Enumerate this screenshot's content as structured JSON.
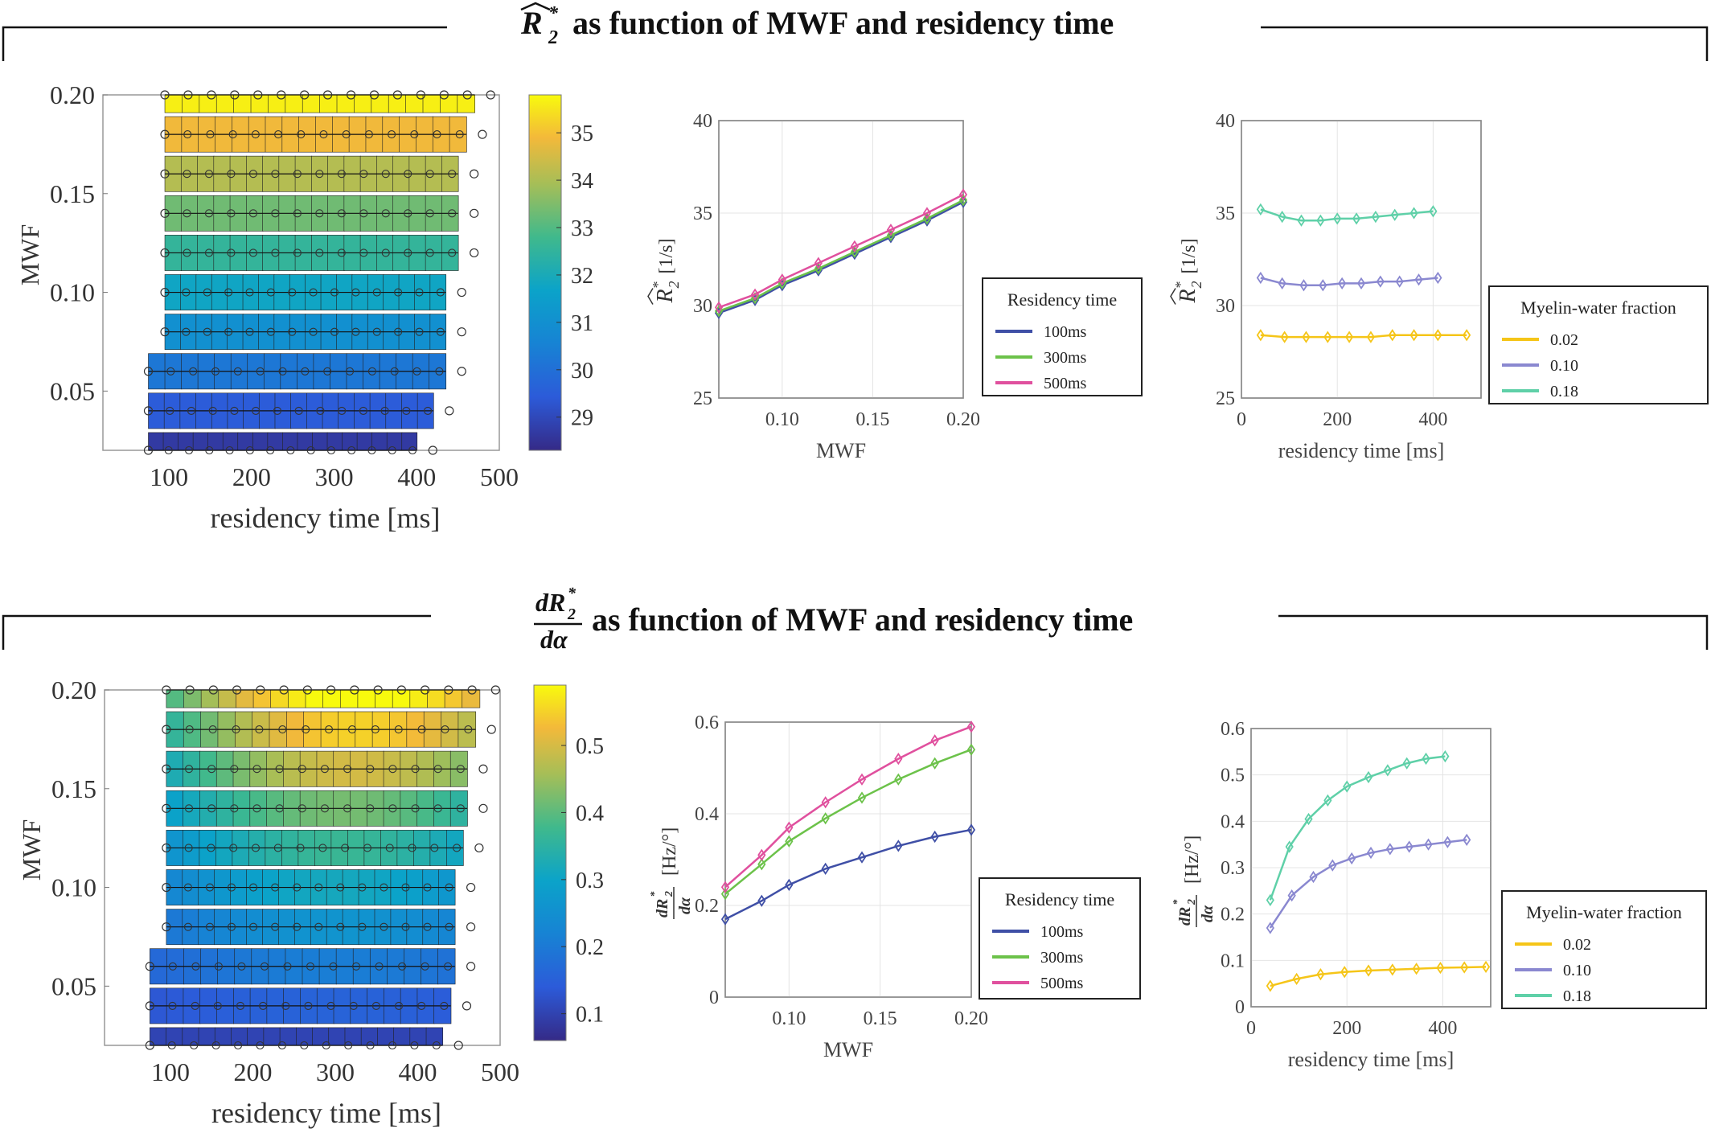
{
  "sections": [
    {
      "title_prefix": "R",
      "title_text": "as function of MWF and residency time",
      "title_kind": "r2hat"
    },
    {
      "title_prefix": "dR",
      "title_text": "as function of MWF and residency time",
      "title_kind": "deriv"
    }
  ],
  "chart_data": [
    {
      "type": "heatmap",
      "id": "r2-heatmap",
      "xlabel": "residency time [ms]",
      "ylabel": "MWF",
      "xticks": [
        100,
        200,
        300,
        400,
        500
      ],
      "yticks": [
        "0.05",
        "0.10",
        "0.15",
        "0.20"
      ],
      "ylim": [
        0.02,
        0.2
      ],
      "colorbar_ticks": [
        29,
        30,
        31,
        32,
        33,
        34,
        35
      ],
      "colorbar_range": [
        28.3,
        35.8
      ],
      "mwf_levels": [
        0.02,
        0.04,
        0.06,
        0.08,
        0.1,
        0.12,
        0.14,
        0.16,
        0.18,
        0.2
      ],
      "row_max_time": [
        400,
        420,
        435,
        435,
        435,
        450,
        450,
        450,
        460,
        470
      ],
      "row_min_time": [
        75,
        75,
        75,
        95,
        95,
        95,
        95,
        95,
        95,
        95
      ],
      "value_low": 28.4,
      "value_high": 35.8
    },
    {
      "type": "line",
      "id": "r2-vs-mwf",
      "xlabel": "MWF",
      "ylabel": "[1/s]",
      "xlim": [
        0.065,
        0.2
      ],
      "ylim": [
        25,
        40
      ],
      "xticks": [
        "0.10",
        "0.15",
        "0.20"
      ],
      "yticks": [
        25,
        30,
        35,
        40
      ],
      "legend_title": "Residency time",
      "x": [
        0.065,
        0.085,
        0.1,
        0.12,
        0.14,
        0.16,
        0.18,
        0.2
      ],
      "series": [
        {
          "name": "100ms",
          "color": "#3f4fa6",
          "values": [
            29.6,
            30.3,
            31.1,
            31.9,
            32.8,
            33.7,
            34.6,
            35.6
          ]
        },
        {
          "name": "300ms",
          "color": "#6cc24a",
          "values": [
            29.7,
            30.4,
            31.2,
            32.0,
            32.9,
            33.8,
            34.7,
            35.7
          ]
        },
        {
          "name": "500ms",
          "color": "#e0509e",
          "values": [
            29.9,
            30.6,
            31.4,
            32.3,
            33.2,
            34.1,
            35.0,
            36.0
          ]
        }
      ]
    },
    {
      "type": "line",
      "id": "r2-vs-time",
      "xlabel": "residency time [ms]",
      "ylabel": "[1/s]",
      "xlim": [
        0,
        500
      ],
      "ylim": [
        25,
        40
      ],
      "xticks": [
        0,
        200,
        400
      ],
      "yticks": [
        25,
        30,
        35,
        40
      ],
      "legend_title": "Myelin-water fraction",
      "series": [
        {
          "name": "0.02",
          "color": "#f5c518",
          "x": [
            40,
            90,
            135,
            180,
            225,
            270,
            315,
            360,
            410,
            470
          ],
          "values": [
            28.4,
            28.3,
            28.3,
            28.3,
            28.3,
            28.3,
            28.4,
            28.4,
            28.4,
            28.4
          ]
        },
        {
          "name": "0.10",
          "color": "#8a88d0",
          "x": [
            40,
            85,
            130,
            170,
            210,
            250,
            290,
            330,
            370,
            410
          ],
          "values": [
            31.5,
            31.2,
            31.1,
            31.1,
            31.2,
            31.2,
            31.3,
            31.3,
            31.4,
            31.5
          ]
        },
        {
          "name": "0.18",
          "color": "#5fd0a8",
          "x": [
            40,
            85,
            125,
            165,
            200,
            240,
            280,
            320,
            360,
            400
          ],
          "values": [
            35.2,
            34.8,
            34.6,
            34.6,
            34.7,
            34.7,
            34.8,
            34.9,
            35.0,
            35.1
          ]
        }
      ]
    },
    {
      "type": "heatmap",
      "id": "deriv-heatmap",
      "xlabel": "residency time [ms]",
      "ylabel": "MWF",
      "xticks": [
        100,
        200,
        300,
        400,
        500
      ],
      "yticks": [
        "0.05",
        "0.10",
        "0.15",
        "0.20"
      ],
      "ylim": [
        0.02,
        0.2
      ],
      "colorbar_ticks": [
        "0.1",
        "0.2",
        "0.3",
        "0.4",
        "0.5"
      ],
      "colorbar_range": [
        0.06,
        0.59
      ],
      "mwf_levels": [
        0.02,
        0.04,
        0.06,
        0.08,
        0.1,
        0.12,
        0.14,
        0.16,
        0.18,
        0.2
      ],
      "row_max_time": [
        430,
        440,
        445,
        445,
        445,
        455,
        460,
        460,
        470,
        475
      ],
      "row_min_time": [
        75,
        75,
        75,
        95,
        95,
        95,
        95,
        95,
        95,
        95
      ],
      "value_low": 0.06,
      "value_high": 0.59
    },
    {
      "type": "line",
      "id": "deriv-vs-mwf",
      "xlabel": "MWF",
      "ylabel": "[Hz/°]",
      "xlim": [
        0.065,
        0.2
      ],
      "ylim": [
        0,
        0.6
      ],
      "xticks": [
        "0.10",
        "0.15",
        "0.20"
      ],
      "yticks": [
        "0",
        "0.2",
        "0.4",
        "0.6"
      ],
      "legend_title": "Residency time",
      "x": [
        0.065,
        0.085,
        0.1,
        0.12,
        0.14,
        0.16,
        0.18,
        0.2
      ],
      "series": [
        {
          "name": "100ms",
          "color": "#3f4fa6",
          "values": [
            0.17,
            0.21,
            0.245,
            0.28,
            0.305,
            0.33,
            0.35,
            0.365
          ]
        },
        {
          "name": "300ms",
          "color": "#6cc24a",
          "values": [
            0.225,
            0.29,
            0.34,
            0.39,
            0.435,
            0.475,
            0.51,
            0.54
          ]
        },
        {
          "name": "500ms",
          "color": "#e0509e",
          "values": [
            0.24,
            0.31,
            0.37,
            0.425,
            0.475,
            0.52,
            0.56,
            0.59
          ]
        }
      ]
    },
    {
      "type": "line",
      "id": "deriv-vs-time",
      "xlabel": "residency time [ms]",
      "ylabel": "[Hz/°]",
      "xlim": [
        0,
        500
      ],
      "ylim": [
        0,
        0.6
      ],
      "xticks": [
        0,
        200,
        400
      ],
      "yticks": [
        "0",
        "0.1",
        "0.2",
        "0.3",
        "0.4",
        "0.5",
        "0.6"
      ],
      "legend_title": "Myelin-water fraction",
      "series": [
        {
          "name": "0.02",
          "color": "#f5c518",
          "x": [
            40,
            95,
            145,
            195,
            245,
            295,
            345,
            395,
            445,
            490
          ],
          "values": [
            0.045,
            0.06,
            0.07,
            0.075,
            0.078,
            0.08,
            0.082,
            0.084,
            0.085,
            0.086
          ]
        },
        {
          "name": "0.10",
          "color": "#8a88d0",
          "x": [
            40,
            85,
            130,
            170,
            210,
            250,
            290,
            330,
            370,
            410,
            450
          ],
          "values": [
            0.17,
            0.24,
            0.28,
            0.305,
            0.32,
            0.332,
            0.34,
            0.345,
            0.35,
            0.355,
            0.36
          ]
        },
        {
          "name": "0.18",
          "color": "#5fd0a8",
          "x": [
            40,
            80,
            120,
            160,
            200,
            245,
            285,
            325,
            365,
            405
          ],
          "values": [
            0.23,
            0.345,
            0.405,
            0.445,
            0.475,
            0.495,
            0.51,
            0.525,
            0.535,
            0.54
          ]
        }
      ]
    }
  ]
}
